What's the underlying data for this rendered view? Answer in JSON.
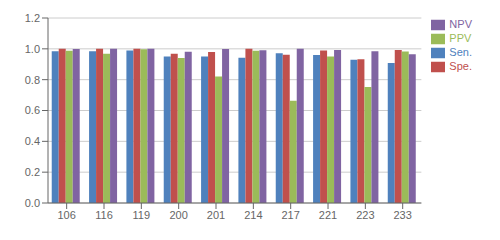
{
  "chart_data": {
    "type": "bar",
    "categories": [
      "106",
      "116",
      "119",
      "200",
      "201",
      "214",
      "217",
      "221",
      "223",
      "233"
    ],
    "series": [
      {
        "name": "Sen.",
        "color": "#4F81BD",
        "values": [
          0.985,
          0.984,
          0.99,
          0.951,
          0.951,
          0.942,
          0.972,
          0.96,
          0.93,
          0.908
        ]
      },
      {
        "name": "Spe.",
        "color": "#C0504D",
        "values": [
          1.0,
          1.0,
          1.0,
          0.968,
          0.979,
          1.0,
          0.962,
          0.99,
          0.933,
          0.993
        ]
      },
      {
        "name": "PPV",
        "color": "#9BBB59",
        "values": [
          0.988,
          0.968,
          0.998,
          0.94,
          0.82,
          0.987,
          0.663,
          0.95,
          0.752,
          0.982
        ]
      },
      {
        "name": "NPV",
        "color": "#8064A2",
        "values": [
          0.999,
          1.0,
          1.0,
          0.981,
          0.999,
          0.991,
          1.0,
          0.992,
          0.985,
          0.965
        ]
      }
    ],
    "ylim": [
      0,
      1.2
    ],
    "yticks": [
      {
        "value": 0,
        "label": "0.0"
      },
      0.2,
      0.4,
      0.6,
      0.8,
      {
        "value": 1,
        "label": "1.0"
      },
      1.2
    ],
    "grid": true,
    "legend": "right"
  }
}
